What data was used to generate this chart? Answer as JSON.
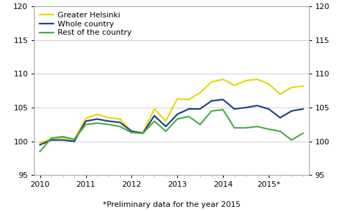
{
  "footnote": "*Preliminary data for the year 2015",
  "x_tick_labels": [
    "2010",
    "2011",
    "2012",
    "2013",
    "2014",
    "2015*"
  ],
  "x_tick_positions": [
    0,
    4,
    8,
    12,
    16,
    20
  ],
  "ylim": [
    95,
    120
  ],
  "yticks": [
    95,
    100,
    105,
    110,
    115,
    120
  ],
  "n_points": 24,
  "series": [
    {
      "label": "Greater Helsinki",
      "color": "#e8d800",
      "linewidth": 1.6,
      "values": [
        99.8,
        100.4,
        100.5,
        100.3,
        103.4,
        104.0,
        103.5,
        103.3,
        101.5,
        101.3,
        104.8,
        103.0,
        106.3,
        106.2,
        107.2,
        108.8,
        109.2,
        108.3,
        109.0,
        109.2,
        108.5,
        107.0,
        108.0,
        108.2
      ]
    },
    {
      "label": "Whole country",
      "color": "#1a3f8f",
      "linewidth": 1.6,
      "values": [
        99.5,
        100.2,
        100.2,
        100.0,
        103.0,
        103.3,
        103.0,
        102.8,
        101.5,
        101.2,
        103.8,
        102.2,
        104.0,
        104.8,
        104.8,
        106.0,
        106.2,
        104.8,
        105.0,
        105.3,
        104.8,
        103.5,
        104.5,
        104.8
      ]
    },
    {
      "label": "Rest of the country",
      "color": "#4aaa4a",
      "linewidth": 1.6,
      "values": [
        98.5,
        100.5,
        100.7,
        100.3,
        102.5,
        102.7,
        102.5,
        102.2,
        101.3,
        101.2,
        103.0,
        101.5,
        103.3,
        103.7,
        102.5,
        104.5,
        104.7,
        102.0,
        102.0,
        102.2,
        101.8,
        101.5,
        100.2,
        101.2
      ]
    }
  ],
  "grid_color": "#c8c8c8",
  "grid_linewidth": 0.6,
  "background_color": "#ffffff",
  "spine_color": "#aaaaaa",
  "legend_fontsize": 8,
  "tick_fontsize": 8,
  "footnote_fontsize": 8
}
